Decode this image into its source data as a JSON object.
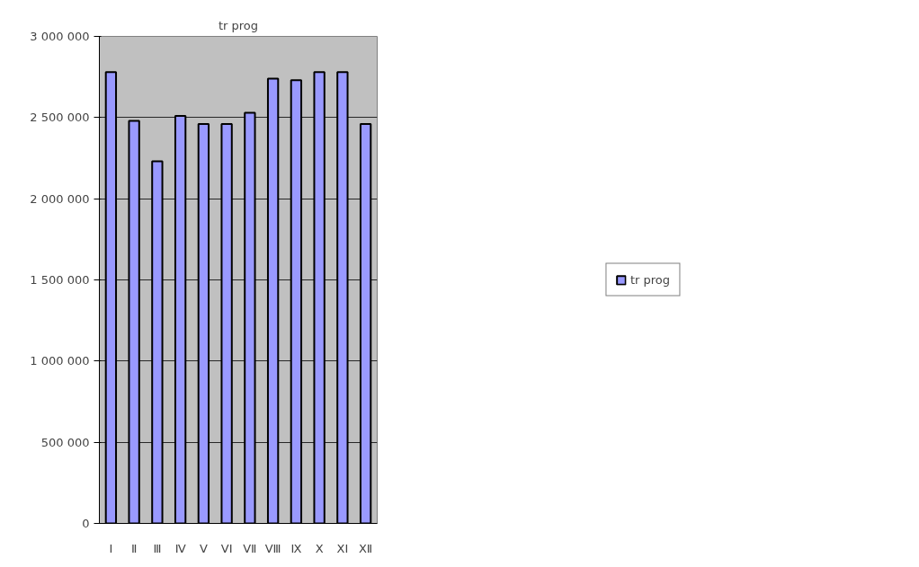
{
  "chart_data": {
    "type": "bar",
    "title": "tr prog",
    "categories": [
      "I",
      "Ⅱ",
      "Ⅲ",
      "Ⅳ",
      "V",
      "VI",
      "VⅡ",
      "VⅢ",
      "Ⅸ",
      "X",
      "XI",
      "XⅡ"
    ],
    "series": [
      {
        "name": "tr prog",
        "color": "#9999ff",
        "values": [
          2780000,
          2480000,
          2230000,
          2510000,
          2460000,
          2460000,
          2530000,
          2740000,
          2730000,
          2780000,
          2780000,
          2460000
        ]
      }
    ],
    "ylim": [
      0,
      3000000
    ],
    "yticks": [
      {
        "value": 0,
        "label": "0"
      },
      {
        "value": 500000,
        "label": "500 000"
      },
      {
        "value": 1000000,
        "label": "1 000 000"
      },
      {
        "value": 1500000,
        "label": "1 500 000"
      },
      {
        "value": 2000000,
        "label": "2 000 000"
      },
      {
        "value": 2500000,
        "label": "2 500 000"
      },
      {
        "value": 3000000,
        "label": "3 000 000"
      }
    ],
    "grid": "y",
    "legend": "right"
  }
}
